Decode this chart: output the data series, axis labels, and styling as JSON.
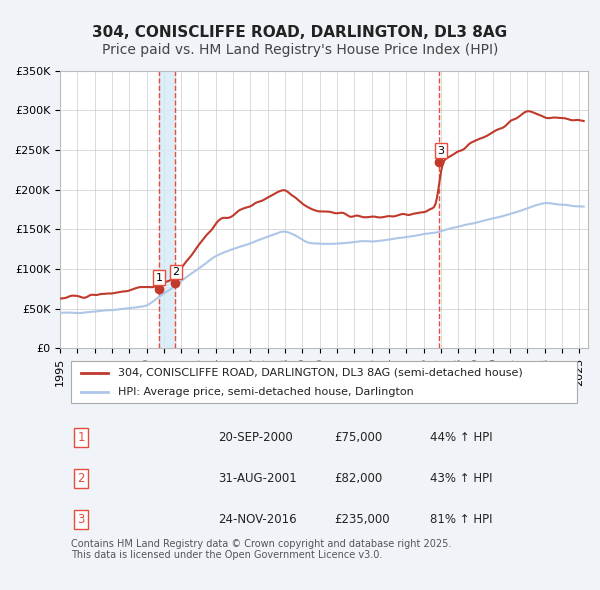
{
  "title": "304, CONISCLIFFE ROAD, DARLINGTON, DL3 8AG",
  "subtitle": "Price paid vs. HM Land Registry's House Price Index (HPI)",
  "xlabel": "",
  "ylabel": "",
  "ylim": [
    0,
    350000
  ],
  "yticks": [
    0,
    50000,
    100000,
    150000,
    200000,
    250000,
    300000,
    350000
  ],
  "ytick_labels": [
    "£0",
    "£50K",
    "£100K",
    "£150K",
    "£200K",
    "£250K",
    "£300K",
    "£350K"
  ],
  "xlim_start": 1995.0,
  "xlim_end": 2025.5,
  "xtick_years": [
    1995,
    1996,
    1997,
    1998,
    1999,
    2000,
    2001,
    2002,
    2003,
    2004,
    2005,
    2006,
    2007,
    2008,
    2009,
    2010,
    2011,
    2012,
    2013,
    2014,
    2015,
    2016,
    2017,
    2018,
    2019,
    2020,
    2021,
    2022,
    2023,
    2024,
    2025
  ],
  "hpi_color": "#aec6e8",
  "price_color": "#c0392b",
  "vline_color": "#e74c3c",
  "vline_style": "--",
  "vshade_color": "#d6eaf8",
  "background_color": "#f0f4f8",
  "plot_bg_color": "#ffffff",
  "grid_color": "#cccccc",
  "transaction1_date": 2000.72,
  "transaction1_price": 75000,
  "transaction2_date": 2001.66,
  "transaction2_price": 82000,
  "transaction3_date": 2016.9,
  "transaction3_price": 235000,
  "legend_line1": "304, CONISCLIFFE ROAD, DARLINGTON, DL3 8AG (semi-detached house)",
  "legend_line2": "HPI: Average price, semi-detached house, Darlington",
  "table_rows": [
    {
      "num": "1",
      "date": "20-SEP-2000",
      "price": "£75,000",
      "pct": "44% ↑ HPI"
    },
    {
      "num": "2",
      "date": "31-AUG-2001",
      "price": "£82,000",
      "pct": "43% ↑ HPI"
    },
    {
      "num": "3",
      "date": "24-NOV-2016",
      "price": "£235,000",
      "pct": "81% ↑ HPI"
    }
  ],
  "footnote": "Contains HM Land Registry data © Crown copyright and database right 2025.\nThis data is licensed under the Open Government Licence v3.0.",
  "title_fontsize": 11,
  "subtitle_fontsize": 10,
  "tick_fontsize": 8,
  "legend_fontsize": 8,
  "table_fontsize": 8.5,
  "footnote_fontsize": 7
}
